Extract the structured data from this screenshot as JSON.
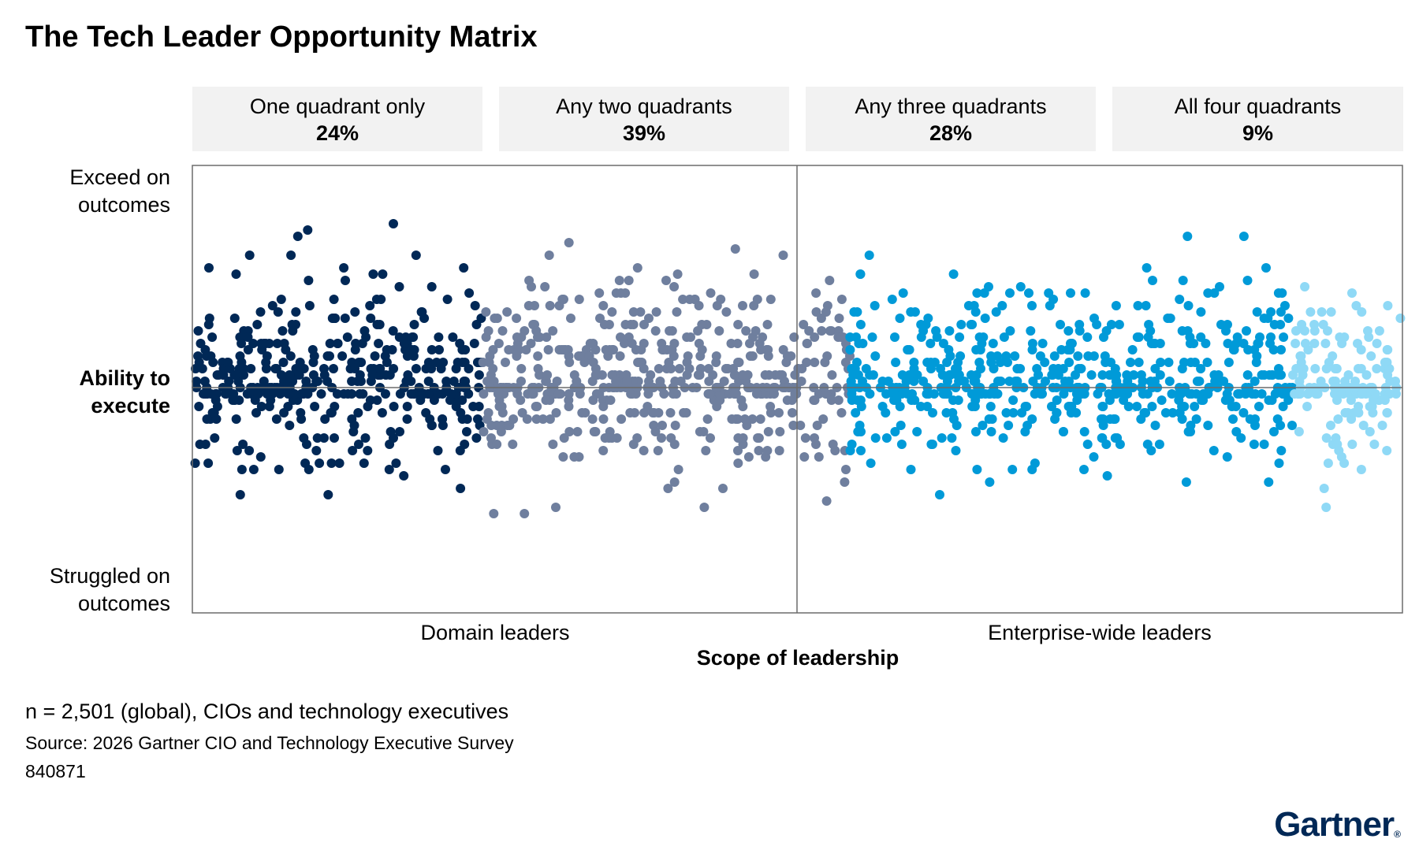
{
  "title": "The Tech Leader Opportunity Matrix",
  "quadrant_boxes": [
    {
      "label": "One quadrant only",
      "value": "24%"
    },
    {
      "label": "Any two quadrants",
      "value": "39%"
    },
    {
      "label": "Any three quadrants",
      "value": "28%"
    },
    {
      "label": "All four quadrants",
      "value": "9%"
    }
  ],
  "y_labels": {
    "top_line1": "Exceed on",
    "top_line2": "outcomes",
    "mid_line1": "Ability to",
    "mid_line2": "execute",
    "bottom_line1": "Struggled on",
    "bottom_line2": "outcomes"
  },
  "x_categories": [
    "Domain leaders",
    "Enterprise-wide leaders"
  ],
  "x_label": "Scope of leadership",
  "note": "n = 2,501 (global), CIOs and technology executives",
  "source": "Source: 2026 Gartner CIO and Technology Executive Survey",
  "doc_id": "840871",
  "logo": "Gartner",
  "colors": {
    "one_quadrant": "#002856",
    "two_quadrants": "#6f7f9e",
    "three_quadrants": "#009ad8",
    "four_quadrants": "#8fd9f6",
    "frame": "#6b6b6b"
  },
  "chart_data": {
    "type": "scatter",
    "title": "The Tech Leader Opportunity Matrix",
    "xlabel": "Scope of leadership",
    "ylabel": "Ability to execute",
    "x_categories": [
      "Domain leaders",
      "Enterprise-wide leaders"
    ],
    "series": [
      {
        "name": "One quadrant only",
        "share_percent": 24,
        "color": "#002856"
      },
      {
        "name": "Any two quadrants",
        "share_percent": 39,
        "color": "#6f7f9e"
      },
      {
        "name": "Any three quadrants",
        "share_percent": 28,
        "color": "#009ad8"
      },
      {
        "name": "All four quadrants",
        "share_percent": 9,
        "color": "#8fd9f6"
      }
    ],
    "sample_size": 2501,
    "grid": false
  }
}
